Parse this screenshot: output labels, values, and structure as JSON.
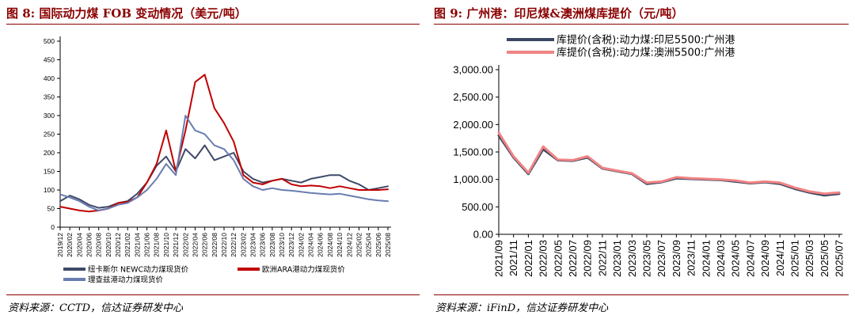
{
  "left_panel": {
    "title": "图 8: 国际动力煤 FOB 变动情况（美元/吨）",
    "source": "资料来源：CCTD，信达证券研发中心"
  },
  "right_panel": {
    "title": "图 9: 广州港：印尼煤&澳洲煤库提价（元/吨）",
    "source": "资料来源：iFinD，信达证券研发中心"
  },
  "colors": {
    "title_red": "#8b0000",
    "newc": "#3f4a6a",
    "ara": "#c00000",
    "richards_bay": "#6a7cb0",
    "indonesia": "#3c4763",
    "australia": "#f08484"
  },
  "chart_data": [
    {
      "type": "line",
      "title": "",
      "xlabel": "",
      "ylabel": "",
      "ylim": [
        0,
        500
      ],
      "yticks": [
        0,
        50,
        100,
        150,
        200,
        250,
        300,
        350,
        400,
        450,
        500
      ],
      "xticks": [
        "2019/12",
        "2020/02",
        "2020/04",
        "2020/06",
        "2020/08",
        "2020/10",
        "2020/12",
        "2021/02",
        "2021/04",
        "2021/06",
        "2021/08",
        "2021/10",
        "2021/12",
        "2022/02",
        "2022/04",
        "2022/06",
        "2022/08",
        "2022/10",
        "2022/12",
        "2023/02",
        "2023/04",
        "2023/06",
        "2023/08",
        "2023/10",
        "2023/12",
        "2024/02",
        "2024/04",
        "2024/06",
        "2024/08",
        "2024/10",
        "2024/12",
        "2025/02",
        "2025/04",
        "2025/06",
        "2025/08"
      ],
      "x_dates": [
        "2019/12",
        "2020/02",
        "2020/04",
        "2020/06",
        "2020/08",
        "2020/10",
        "2020/12",
        "2021/02",
        "2021/04",
        "2021/06",
        "2021/08",
        "2021/10",
        "2021/12",
        "2022/02",
        "2022/04",
        "2022/06",
        "2022/08",
        "2022/10",
        "2022/12",
        "2023/02",
        "2023/04",
        "2023/06",
        "2023/08",
        "2023/10",
        "2023/12",
        "2024/02",
        "2024/04",
        "2024/06",
        "2024/08",
        "2024/10",
        "2024/12",
        "2025/02",
        "2025/04",
        "2025/06",
        "2025/08"
      ],
      "legend_position": "bottom",
      "series": [
        {
          "name": "纽卡斯尔 NEWC动力煤现货价",
          "color": "#3f4a6a",
          "values": [
            70,
            85,
            75,
            60,
            52,
            55,
            65,
            70,
            90,
            120,
            165,
            190,
            150,
            210,
            185,
            220,
            180,
            190,
            200,
            150,
            130,
            120,
            125,
            130,
            125,
            120,
            130,
            135,
            140,
            140,
            125,
            115,
            100,
            105,
            110
          ]
        },
        {
          "name": "欧洲ARA港动力煤现货价",
          "color": "#c00000",
          "values": [
            55,
            50,
            45,
            42,
            45,
            50,
            65,
            68,
            80,
            120,
            170,
            260,
            150,
            260,
            390,
            410,
            320,
            280,
            230,
            140,
            120,
            115,
            125,
            130,
            115,
            110,
            112,
            110,
            105,
            110,
            105,
            100,
            100,
            100,
            102
          ]
        },
        {
          "name": "理查兹港动力煤现货价",
          "color": "#6a7cb0",
          "values": [
            88,
            80,
            70,
            55,
            45,
            50,
            60,
            65,
            80,
            100,
            130,
            170,
            140,
            300,
            260,
            250,
            220,
            210,
            180,
            130,
            110,
            100,
            105,
            100,
            98,
            95,
            92,
            90,
            88,
            90,
            85,
            80,
            75,
            72,
            70
          ]
        }
      ]
    },
    {
      "type": "line",
      "title": "",
      "xlabel": "",
      "ylabel": "",
      "ylim": [
        0,
        3000
      ],
      "yticks": [
        "0.00",
        "500.00",
        "1,000.00",
        "1,500.00",
        "2,000.00",
        "2,500.00",
        "3,000.00"
      ],
      "xticks": [
        "2021/09",
        "2021/11",
        "2022/01",
        "2022/03",
        "2022/05",
        "2022/07",
        "2022/09",
        "2022/11",
        "2023/01",
        "2023/03",
        "2023/05",
        "2023/07",
        "2023/09",
        "2023/11",
        "2024/01",
        "2024/03",
        "2024/05",
        "2024/07",
        "2024/09",
        "2024/11",
        "2025/01",
        "2025/03",
        "2025/05",
        "2025/07"
      ],
      "x_dates": [
        "2021/09",
        "2021/11",
        "2022/01",
        "2022/03",
        "2022/05",
        "2022/07",
        "2022/09",
        "2022/11",
        "2023/01",
        "2023/03",
        "2023/05",
        "2023/07",
        "2023/09",
        "2023/11",
        "2024/01",
        "2024/03",
        "2024/05",
        "2024/07",
        "2024/09",
        "2024/11",
        "2025/01",
        "2025/03",
        "2025/05",
        "2025/07"
      ],
      "legend_position": "top-right",
      "series": [
        {
          "name": "库提价(含税):动力煤:印尼5500:广州港",
          "color": "#3c4763",
          "values": [
            1800,
            1400,
            1100,
            1550,
            1350,
            1340,
            1400,
            1200,
            1150,
            1100,
            920,
            950,
            1020,
            1010,
            1000,
            990,
            960,
            930,
            950,
            920,
            830,
            760,
            710,
            740
          ]
        },
        {
          "name": "库提价(含税):动力煤:澳洲5500:广州港",
          "color": "#f08484",
          "values": [
            1850,
            1420,
            1120,
            1600,
            1360,
            1350,
            1420,
            1210,
            1160,
            1110,
            940,
            960,
            1040,
            1020,
            1010,
            1000,
            980,
            940,
            960,
            940,
            850,
            780,
            740,
            760
          ]
        }
      ]
    }
  ]
}
